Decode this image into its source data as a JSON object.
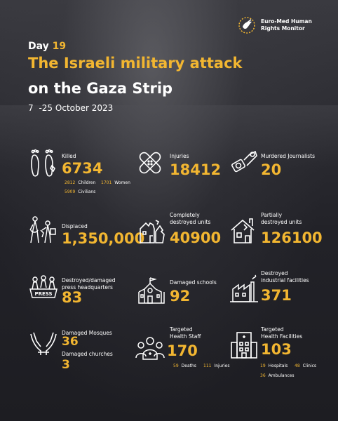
{
  "logo": {
    "line1": "Euro-Med Human",
    "line2": "Rights Monitor"
  },
  "header": {
    "day_label": "Day",
    "day_number": "19",
    "title_line1": "The Israeli military attack",
    "title_line2": "on the Gaza Strip",
    "date_start": "7",
    "date_end": "-25",
    "date_month": "October 2023"
  },
  "colors": {
    "accent": "#f2b631",
    "background": "#1f1f24"
  },
  "stats": {
    "killed": {
      "icon": "feet-icon",
      "label": "Killed",
      "value": "6734",
      "children_value": "2812",
      "children_label": "Children",
      "women_value": "1701",
      "women_label": "Women",
      "civilians_value": "5909",
      "civilians_label": "Civilians"
    },
    "injuries": {
      "icon": "bandage-icon",
      "label": "Injuries",
      "value": "18412"
    },
    "journalists": {
      "icon": "handcuffed-camera-icon",
      "label": "Murdered Journalists",
      "value": "20"
    },
    "displaced": {
      "icon": "displaced-people-icon",
      "label": "Displaced",
      "value": "1,350,000"
    },
    "destroyed_units": {
      "icon": "destroyed-house-icon",
      "label_line1": "Completely",
      "label_line2": "destroyed units",
      "value": "40900"
    },
    "partial_units": {
      "icon": "damaged-house-icon",
      "label_line1": "Partially",
      "label_line2": "destroyed units",
      "value": "126100"
    },
    "press_hq": {
      "icon": "press-icon",
      "label_line1": "Destroyed/damaged",
      "label_line2": "press headquarters",
      "value": "83",
      "badge": "PRESS"
    },
    "schools": {
      "icon": "school-icon",
      "label": "Damaged schools",
      "value": "92"
    },
    "industrial": {
      "icon": "factory-icon",
      "label_line1": "Destroyed",
      "label_line2": "industrial facilities",
      "value": "371"
    },
    "mosques": {
      "icon": "praying-hands-icon",
      "label": "Damaged Mosques",
      "value": "36"
    },
    "churches": {
      "label": "Damaged churches",
      "value": "3"
    },
    "health_staff": {
      "icon": "health-staff-icon",
      "label_line1": "Targeted",
      "label_line2": "Health Staff",
      "value": "170",
      "deaths_value": "59",
      "deaths_label": "Deaths",
      "injuries_value": "111",
      "injuries_label": "Injuries"
    },
    "health_facilities": {
      "icon": "hospital-icon",
      "label_line1": "Targeted",
      "label_line2": "Health Facilities",
      "value": "103",
      "hospitals_value": "19",
      "hospitals_label": "Hospitals",
      "clinics_value": "48",
      "clinics_label": "Clinics",
      "ambulances_value": "36",
      "ambulances_label": "Ambulances"
    }
  }
}
